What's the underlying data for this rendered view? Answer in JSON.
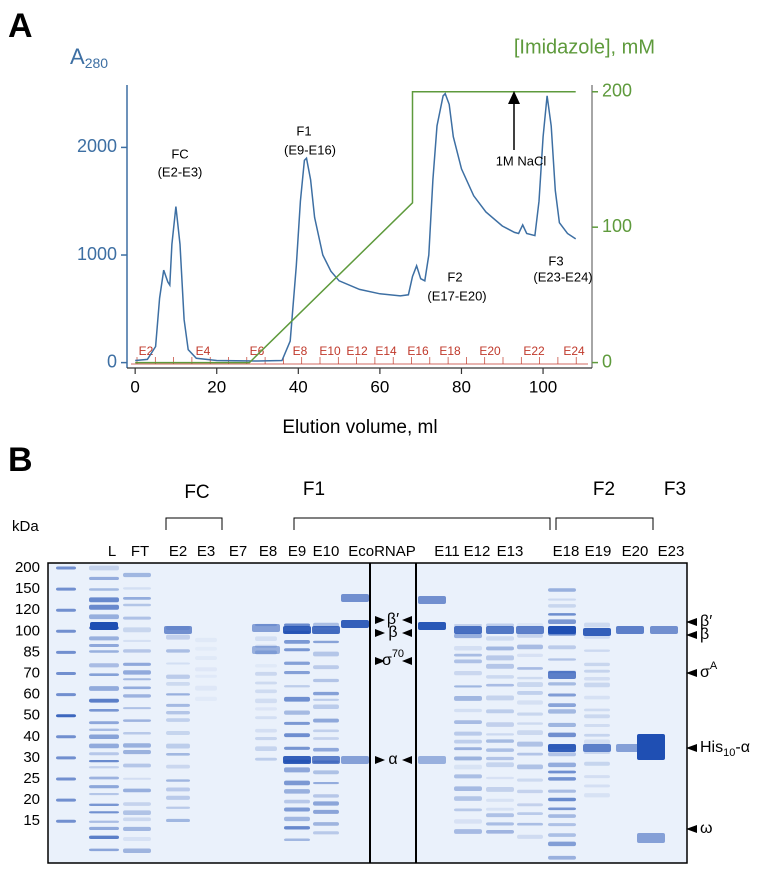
{
  "figure": {
    "panel_a": "A",
    "panel_b": "B"
  },
  "chart_data": {
    "type": "line",
    "y_label": "A",
    "y_label_sub": "280",
    "y2_label": "[Imidazole], mM",
    "x_label": "Elution volume, ml",
    "xlim": [
      -2,
      112
    ],
    "xticks": [
      0,
      20,
      40,
      60,
      80,
      100
    ],
    "ylim": [
      -50,
      2580
    ],
    "yticks": [
      0,
      1000,
      2000
    ],
    "y2lim": [
      -4,
      205
    ],
    "y2ticks": [
      0,
      100,
      200
    ],
    "series": [
      {
        "color": "#3d6fa3",
        "x": [
          0,
          3,
          5,
          6,
          7,
          8,
          8.5,
          9,
          10,
          11,
          12,
          13,
          15,
          20,
          30,
          36,
          38,
          39.5,
          40.5,
          41.5,
          42,
          43,
          44,
          46,
          48,
          50,
          55,
          60,
          65,
          67,
          68,
          69,
          70,
          71,
          72,
          73,
          74,
          75.5,
          76,
          77,
          78,
          80,
          83,
          86,
          90,
          93,
          94,
          95,
          96,
          98,
          99,
          100,
          101,
          102,
          103,
          104,
          106,
          108
        ],
        "values": [
          20,
          30,
          150,
          600,
          860,
          750,
          720,
          1100,
          1450,
          1100,
          400,
          120,
          40,
          20,
          15,
          20,
          200,
          900,
          1500,
          1880,
          1900,
          1700,
          1350,
          1000,
          850,
          760,
          680,
          640,
          620,
          630,
          800,
          900,
          780,
          760,
          1000,
          1700,
          2200,
          2480,
          2500,
          2400,
          2100,
          1800,
          1550,
          1400,
          1270,
          1210,
          1200,
          1280,
          1200,
          1180,
          1500,
          2100,
          2480,
          2200,
          1600,
          1300,
          1200,
          1150
        ]
      },
      {
        "color": "#5e9a3c",
        "axis": "y2",
        "x": [
          0,
          28,
          68,
          68,
          108
        ],
        "values": [
          0,
          0,
          118,
          200,
          200
        ]
      }
    ],
    "annotations": [
      "FC",
      "(E2-E3)",
      "F1",
      "(E9-E16)",
      "F2",
      "(E17-E20)",
      "F3",
      "(E23-E24)",
      "1M NaCl"
    ],
    "fractions": [
      "E2",
      "E4",
      "E6",
      "E8",
      "E10",
      "E12",
      "E14",
      "E16",
      "E18",
      "E20",
      "E22",
      "E24"
    ]
  },
  "gel": {
    "groups": [
      "FC",
      "F1",
      "F2",
      "F3"
    ],
    "unit": "kDa",
    "lanes": [
      "L",
      "FT",
      "E2",
      "E3",
      "E7",
      "E8",
      "E9",
      "E10",
      "EcoRNAP",
      "E11",
      "E12",
      "E13",
      "E18",
      "E19",
      "E20",
      "E23"
    ],
    "markers": [
      200,
      150,
      120,
      100,
      85,
      70,
      60,
      50,
      40,
      30,
      25,
      20,
      15
    ],
    "annotations_left": [
      {
        "text": "β′"
      },
      {
        "text": "β"
      },
      {
        "text": "σ",
        "sup": "70"
      },
      {
        "text": "α"
      }
    ],
    "annotations_right": [
      {
        "text": "β′"
      },
      {
        "text": "β"
      },
      {
        "text": "σ",
        "sup": "A"
      },
      {
        "text": "His",
        "sub": "10",
        "after": "-α"
      },
      {
        "text": "ω"
      }
    ]
  }
}
